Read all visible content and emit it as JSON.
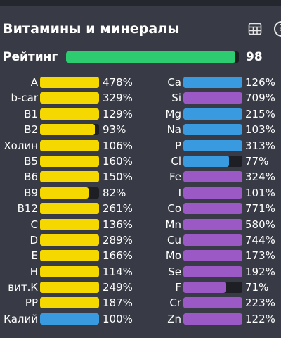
{
  "header": {
    "title": "Витамины и минералы",
    "icons": [
      "table-icon",
      "help-icon"
    ]
  },
  "rating": {
    "label": "Рейтинг",
    "value": "98",
    "fraction": 0.98
  },
  "colors": {
    "vitamin": "#f5d800",
    "mineral_blue": "#3a9ae0",
    "mineral_purple": "#9b59c6",
    "rating": "#2ecc71",
    "track": "#1d1f24"
  },
  "left": [
    {
      "name": "A",
      "value": "478%",
      "pct": 478,
      "color": "#f5d800"
    },
    {
      "name": "b-car",
      "value": "329%",
      "pct": 329,
      "color": "#f5d800"
    },
    {
      "name": "B1",
      "value": "129%",
      "pct": 129,
      "color": "#f5d800"
    },
    {
      "name": "B2",
      "value": "93%",
      "pct": 93,
      "color": "#f5d800"
    },
    {
      "name": "Холин",
      "value": "106%",
      "pct": 106,
      "color": "#f5d800"
    },
    {
      "name": "B5",
      "value": "160%",
      "pct": 160,
      "color": "#f5d800"
    },
    {
      "name": "B6",
      "value": "150%",
      "pct": 150,
      "color": "#f5d800"
    },
    {
      "name": "B9",
      "value": "82%",
      "pct": 82,
      "color": "#f5d800"
    },
    {
      "name": "B12",
      "value": "261%",
      "pct": 261,
      "color": "#f5d800"
    },
    {
      "name": "C",
      "value": "136%",
      "pct": 136,
      "color": "#f5d800"
    },
    {
      "name": "D",
      "value": "289%",
      "pct": 289,
      "color": "#f5d800"
    },
    {
      "name": "E",
      "value": "166%",
      "pct": 166,
      "color": "#f5d800"
    },
    {
      "name": "H",
      "value": "114%",
      "pct": 114,
      "color": "#f5d800"
    },
    {
      "name": "вит.К",
      "value": "249%",
      "pct": 249,
      "color": "#f5d800"
    },
    {
      "name": "PP",
      "value": "187%",
      "pct": 187,
      "color": "#f5d800"
    },
    {
      "name": "Калий",
      "value": "100%",
      "pct": 100,
      "color": "#3a9ae0"
    }
  ],
  "right": [
    {
      "name": "Ca",
      "value": "126%",
      "pct": 126,
      "color": "#3a9ae0"
    },
    {
      "name": "Si",
      "value": "709%",
      "pct": 709,
      "color": "#9b59c6"
    },
    {
      "name": "Mg",
      "value": "215%",
      "pct": 215,
      "color": "#3a9ae0"
    },
    {
      "name": "Na",
      "value": "103%",
      "pct": 103,
      "color": "#3a9ae0"
    },
    {
      "name": "P",
      "value": "313%",
      "pct": 313,
      "color": "#3a9ae0"
    },
    {
      "name": "Cl",
      "value": "77%",
      "pct": 77,
      "color": "#3a9ae0"
    },
    {
      "name": "Fe",
      "value": "324%",
      "pct": 324,
      "color": "#9b59c6"
    },
    {
      "name": "I",
      "value": "101%",
      "pct": 101,
      "color": "#9b59c6"
    },
    {
      "name": "Co",
      "value": "771%",
      "pct": 771,
      "color": "#9b59c6"
    },
    {
      "name": "Mn",
      "value": "580%",
      "pct": 580,
      "color": "#9b59c6"
    },
    {
      "name": "Cu",
      "value": "744%",
      "pct": 744,
      "color": "#9b59c6"
    },
    {
      "name": "Mo",
      "value": "173%",
      "pct": 173,
      "color": "#9b59c6"
    },
    {
      "name": "Se",
      "value": "192%",
      "pct": 192,
      "color": "#9b59c6"
    },
    {
      "name": "F",
      "value": "71%",
      "pct": 71,
      "color": "#9b59c6"
    },
    {
      "name": "Cr",
      "value": "223%",
      "pct": 223,
      "color": "#9b59c6"
    },
    {
      "name": "Zn",
      "value": "122%",
      "pct": 122,
      "color": "#9b59c6"
    }
  ]
}
